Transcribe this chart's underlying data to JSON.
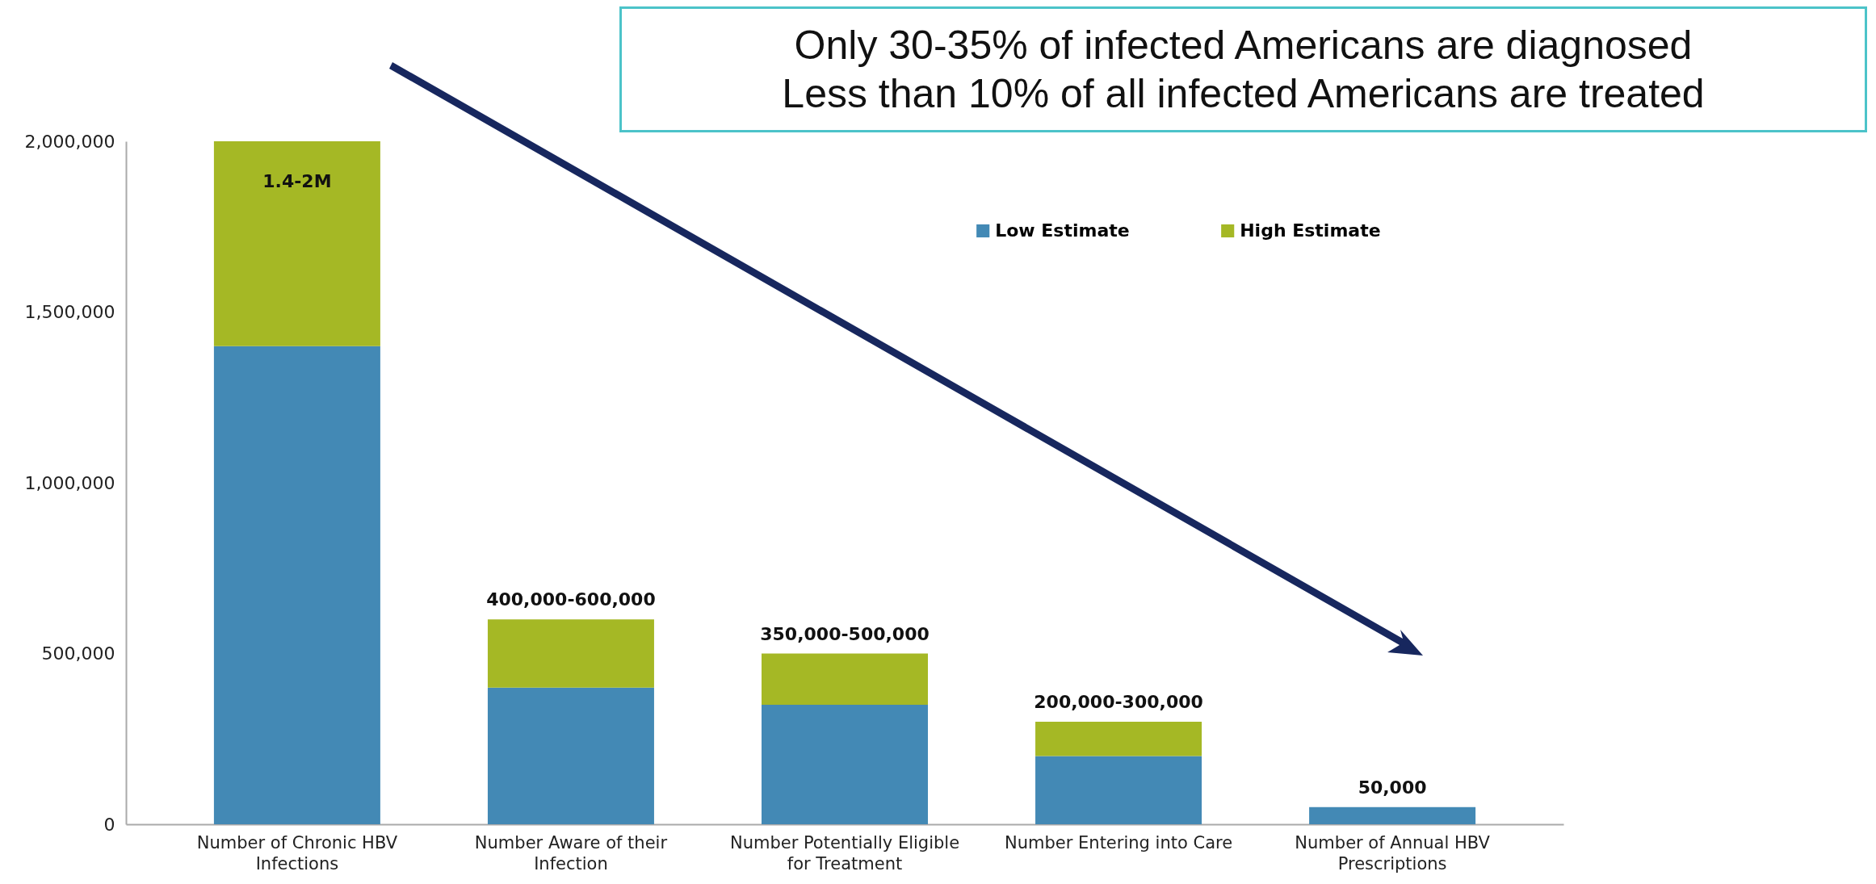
{
  "chart_data": {
    "type": "bar",
    "stacked": true,
    "categories": [
      "Number of Chronic HBV Infections",
      "Number Aware of their Infection",
      "Number Potentially Eligible for Treatment",
      "Number Entering into Care",
      "Number of Annual HBV Prescriptions"
    ],
    "series": [
      {
        "name": "Low Estimate",
        "color": "#4389b5",
        "values": [
          1400000,
          400000,
          350000,
          200000,
          50000
        ]
      },
      {
        "name": "High Estimate",
        "color": "#a5b825",
        "values": [
          600000,
          200000,
          150000,
          100000,
          null
        ]
      }
    ],
    "ylim": [
      0,
      2000000
    ],
    "yticks": [
      {
        "value": 0,
        "label": "0"
      },
      {
        "value": 500000,
        "label": "500,000"
      },
      {
        "value": 1000000,
        "label": "1,000,000"
      },
      {
        "value": 1500000,
        "label": "1,500,000"
      },
      {
        "value": 2000000,
        "label": "2,000,000"
      }
    ],
    "grid": false,
    "legend": "top right",
    "annotations": [
      "Only 30-35% of infected Americans are diagnosed",
      "Less than 10% of all infected Americans are treated",
      {
        "text": "1.4-2M",
        "x": "Number of Chronic HBV Infections",
        "y": 2000000
      },
      {
        "text": "400,000-600,000",
        "x": "Number Aware of their Infection",
        "y": 600000
      },
      {
        "text": "350,000-500,000",
        "x": "Number Potentially Eligible for Treatment",
        "y": 500000
      },
      {
        "text": "200,000-300,000",
        "x": "Number Entering into Care",
        "y": 300000
      },
      {
        "text": "50,000",
        "x": "Number of Annual HBV Prescriptions",
        "y": 50000
      }
    ]
  }
}
